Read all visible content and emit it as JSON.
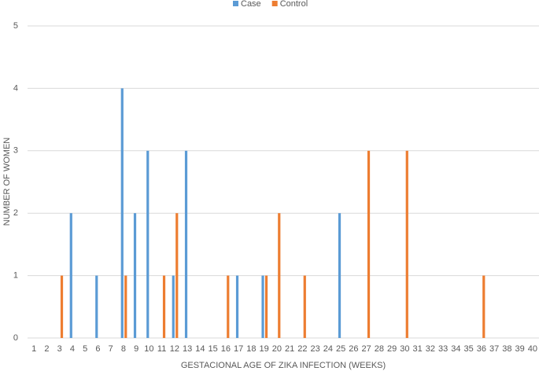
{
  "chart_data": {
    "type": "bar",
    "x_label": "GESTACIONAL AGE OF ZIKA INFECTION (WEEKS)",
    "y_label": "NUMBER OF WOMEN",
    "categories": [
      "1",
      "2",
      "3",
      "4",
      "5",
      "6",
      "7",
      "8",
      "9",
      "10",
      "11",
      "12",
      "13",
      "14",
      "15",
      "16",
      "17",
      "18",
      "19",
      "20",
      "21",
      "22",
      "23",
      "24",
      "25",
      "26",
      "27",
      "28",
      "29",
      "30",
      "31",
      "32",
      "33",
      "34",
      "35",
      "36",
      "37",
      "38",
      "39",
      "40"
    ],
    "series": [
      {
        "name": "Case",
        "color": "#5b9bd5",
        "values": [
          0,
          0,
          0,
          2,
          0,
          1,
          0,
          4,
          2,
          3,
          0,
          1,
          3,
          0,
          0,
          0,
          1,
          0,
          1,
          0,
          0,
          0,
          0,
          0,
          2,
          0,
          0,
          0,
          0,
          0,
          0,
          0,
          0,
          0,
          0,
          0,
          0,
          0,
          0,
          0
        ]
      },
      {
        "name": "Control",
        "color": "#ed7d31",
        "values": [
          0,
          0,
          1,
          0,
          0,
          0,
          0,
          1,
          0,
          0,
          1,
          2,
          0,
          0,
          0,
          1,
          0,
          0,
          1,
          2,
          0,
          1,
          0,
          0,
          0,
          0,
          3,
          0,
          0,
          3,
          0,
          0,
          0,
          0,
          0,
          1,
          0,
          0,
          0,
          0
        ]
      }
    ],
    "ylim": [
      0,
      5
    ],
    "yticks": [
      0,
      1,
      2,
      3,
      4,
      5
    ],
    "grid": true,
    "legend": "top"
  }
}
